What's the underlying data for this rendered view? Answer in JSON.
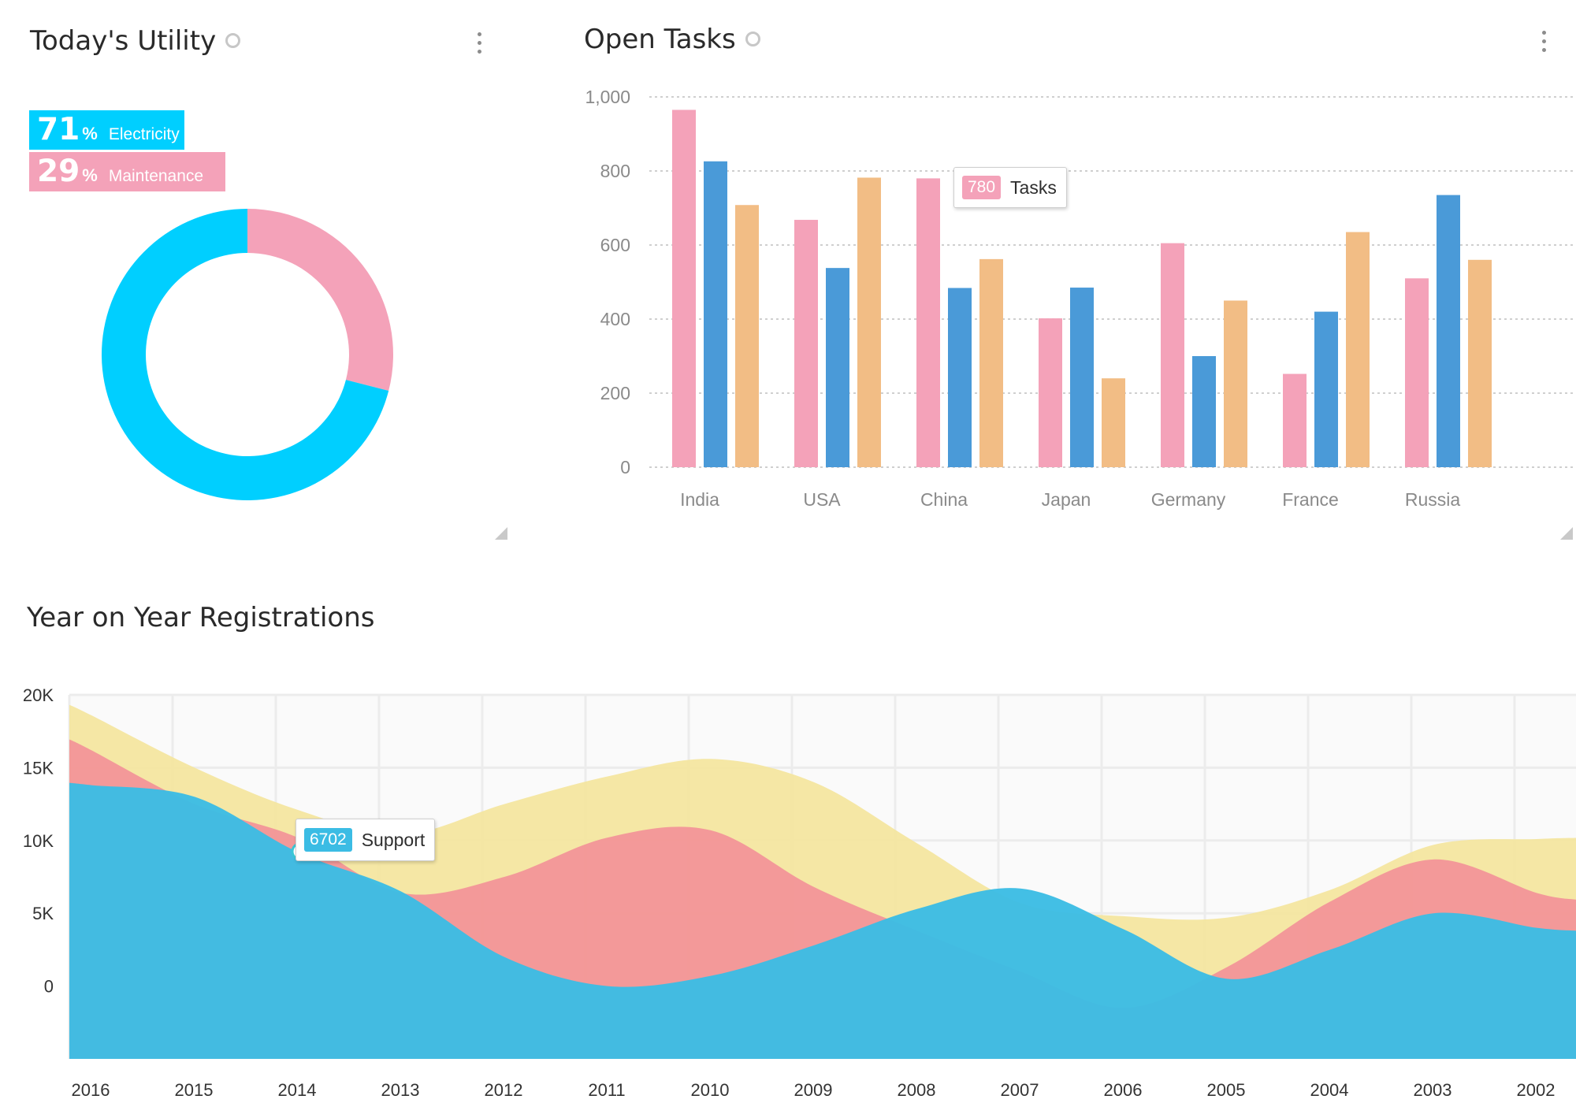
{
  "utility": {
    "title": "Today's Utility",
    "segments": [
      {
        "value": "71",
        "pct_sign": "%",
        "label": "Electricity",
        "color": "#00cfff"
      },
      {
        "value": "29",
        "pct_sign": "%",
        "label": "Maintenance",
        "color": "#f4a2b9"
      }
    ]
  },
  "tasks": {
    "title": "Open Tasks",
    "tooltip": {
      "value": "780",
      "label": "Tasks",
      "color": "#f4a2b9"
    }
  },
  "registrations": {
    "title": "Year on Year Registrations",
    "tooltip": {
      "value": "6702",
      "label": "Support",
      "color": "#3bbce4"
    }
  },
  "chart_data": [
    {
      "type": "pie",
      "variant": "donut",
      "categories": [
        "Electricity",
        "Maintenance"
      ],
      "values": [
        71,
        29
      ],
      "colors": [
        "#00cfff",
        "#f4a2b9"
      ],
      "title": "Today's Utility"
    },
    {
      "type": "bar",
      "title": "Open Tasks",
      "categories": [
        "India",
        "USA",
        "China",
        "Japan",
        "Germany",
        "France",
        "Russia"
      ],
      "series": [
        {
          "color": "#f4a2b9",
          "values": [
            965,
            668,
            780,
            402,
            605,
            252,
            510
          ]
        },
        {
          "color": "#4a9ad8",
          "values": [
            826,
            538,
            484,
            485,
            300,
            420,
            735
          ]
        },
        {
          "color": "#f2bd85",
          "values": [
            708,
            782,
            562,
            240,
            450,
            635,
            560
          ]
        }
      ],
      "ylim": [
        0,
        1000
      ],
      "yticks": [
        "0",
        "200",
        "400",
        "600",
        "800",
        "1,000"
      ],
      "grid": true
    },
    {
      "type": "area",
      "title": "Year on Year Registrations",
      "categories": [
        "2016",
        "2015",
        "2014",
        "2013",
        "2012",
        "2011",
        "2010",
        "2009",
        "2008",
        "2007",
        "2006",
        "2005",
        "2004",
        "2003",
        "2002"
      ],
      "series": [
        {
          "name": "Support",
          "color": "#3bbce4",
          "values": [
            13800,
            13000,
            9200,
            6500,
            2000,
            0,
            700,
            2800,
            5300,
            6700,
            3900,
            500,
            2500,
            5000,
            4000
          ]
        },
        {
          "color": "#f29598",
          "values": [
            16200,
            12500,
            10200,
            6400,
            7500,
            10200,
            10700,
            6800,
            3800,
            1000,
            -1500,
            1300,
            5800,
            8700,
            6400
          ]
        },
        {
          "color": "#f4e6a0",
          "values": [
            18600,
            15000,
            12100,
            10400,
            12500,
            14400,
            15600,
            14000,
            9800,
            5700,
            4800,
            4700,
            6600,
            9700,
            10100
          ]
        }
      ],
      "ylim": [
        -5000,
        20000
      ],
      "yticks": [
        "0",
        "5K",
        "10K",
        "15K",
        "20K"
      ],
      "grid": true
    }
  ]
}
